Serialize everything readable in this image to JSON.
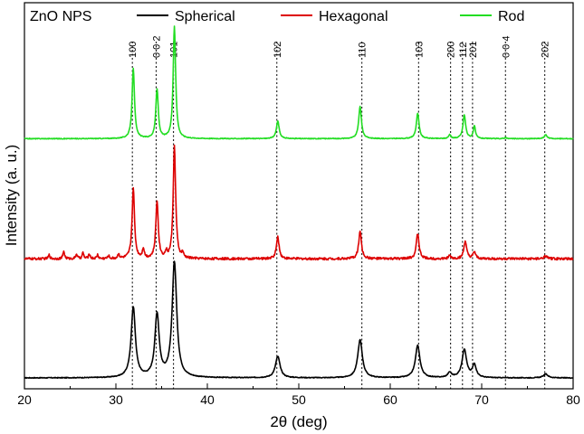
{
  "chart_data": {
    "type": "line",
    "xlabel": "2θ (deg)",
    "ylabel": "Intensity (a. u.)",
    "xlim": [
      20,
      80
    ],
    "x_ticks": [
      20,
      30,
      40,
      50,
      60,
      70,
      80
    ],
    "y_tick_labels": false,
    "grid": false,
    "legend": {
      "title": "ZnO NPS",
      "placement": "top",
      "entries": [
        "Spherical",
        "Hexagonal",
        "Rod"
      ]
    },
    "reference_lines": [
      {
        "x": 31.8,
        "label": "100"
      },
      {
        "x": 34.4,
        "label": "0 0 2"
      },
      {
        "x": 36.3,
        "label": "101"
      },
      {
        "x": 47.6,
        "label": "102"
      },
      {
        "x": 56.9,
        "label": "110"
      },
      {
        "x": 63.1,
        "label": "103"
      },
      {
        "x": 66.6,
        "label": "200"
      },
      {
        "x": 67.9,
        "label": "112"
      },
      {
        "x": 69.0,
        "label": "201"
      },
      {
        "x": 72.6,
        "label": "0 0 4"
      },
      {
        "x": 76.9,
        "label": "202"
      }
    ],
    "series": [
      {
        "name": "Spherical",
        "color": "#000000",
        "baseline": 0.0,
        "noise": 0.004,
        "peaks": [
          {
            "x": 31.9,
            "h": 0.72,
            "w": 0.28
          },
          {
            "x": 34.5,
            "h": 0.64,
            "w": 0.28
          },
          {
            "x": 36.4,
            "h": 1.18,
            "w": 0.3
          },
          {
            "x": 47.7,
            "h": 0.22,
            "w": 0.3
          },
          {
            "x": 56.7,
            "h": 0.39,
            "w": 0.3
          },
          {
            "x": 63.0,
            "h": 0.33,
            "w": 0.3
          },
          {
            "x": 66.5,
            "h": 0.05,
            "w": 0.25
          },
          {
            "x": 68.1,
            "h": 0.29,
            "w": 0.3
          },
          {
            "x": 69.2,
            "h": 0.13,
            "w": 0.25
          },
          {
            "x": 77.0,
            "h": 0.04,
            "w": 0.3
          }
        ]
      },
      {
        "name": "Hexagonal",
        "color": "#dd0000",
        "baseline": 1.22,
        "noise": 0.012,
        "peaks": [
          {
            "x": 22.7,
            "h": 0.04,
            "w": 0.1
          },
          {
            "x": 24.3,
            "h": 0.08,
            "w": 0.1
          },
          {
            "x": 25.7,
            "h": 0.05,
            "w": 0.1
          },
          {
            "x": 26.4,
            "h": 0.06,
            "w": 0.1
          },
          {
            "x": 27.1,
            "h": 0.05,
            "w": 0.1
          },
          {
            "x": 28.0,
            "h": 0.04,
            "w": 0.1
          },
          {
            "x": 29.2,
            "h": 0.03,
            "w": 0.1
          },
          {
            "x": 30.3,
            "h": 0.05,
            "w": 0.1
          },
          {
            "x": 31.9,
            "h": 0.72,
            "w": 0.16
          },
          {
            "x": 33.0,
            "h": 0.1,
            "w": 0.12
          },
          {
            "x": 34.5,
            "h": 0.58,
            "w": 0.16
          },
          {
            "x": 35.5,
            "h": 0.06,
            "w": 0.1
          },
          {
            "x": 36.4,
            "h": 1.15,
            "w": 0.16
          },
          {
            "x": 37.3,
            "h": 0.05,
            "w": 0.1
          },
          {
            "x": 47.7,
            "h": 0.22,
            "w": 0.18
          },
          {
            "x": 56.7,
            "h": 0.28,
            "w": 0.18
          },
          {
            "x": 63.0,
            "h": 0.26,
            "w": 0.18
          },
          {
            "x": 66.5,
            "h": 0.03,
            "w": 0.15
          },
          {
            "x": 68.2,
            "h": 0.18,
            "w": 0.18
          },
          {
            "x": 69.2,
            "h": 0.07,
            "w": 0.15
          },
          {
            "x": 77.0,
            "h": 0.03,
            "w": 0.18
          }
        ]
      },
      {
        "name": "Rod",
        "color": "#22dd22",
        "baseline": 2.45,
        "noise": 0.004,
        "peaks": [
          {
            "x": 31.9,
            "h": 0.72,
            "w": 0.16
          },
          {
            "x": 34.5,
            "h": 0.5,
            "w": 0.16
          },
          {
            "x": 36.4,
            "h": 1.15,
            "w": 0.16
          },
          {
            "x": 47.7,
            "h": 0.18,
            "w": 0.18
          },
          {
            "x": 56.7,
            "h": 0.33,
            "w": 0.18
          },
          {
            "x": 63.0,
            "h": 0.26,
            "w": 0.18
          },
          {
            "x": 66.5,
            "h": 0.04,
            "w": 0.14
          },
          {
            "x": 68.1,
            "h": 0.24,
            "w": 0.18
          },
          {
            "x": 69.2,
            "h": 0.13,
            "w": 0.14
          },
          {
            "x": 72.6,
            "h": 0.01,
            "w": 0.15
          },
          {
            "x": 77.0,
            "h": 0.04,
            "w": 0.18
          }
        ]
      }
    ]
  }
}
